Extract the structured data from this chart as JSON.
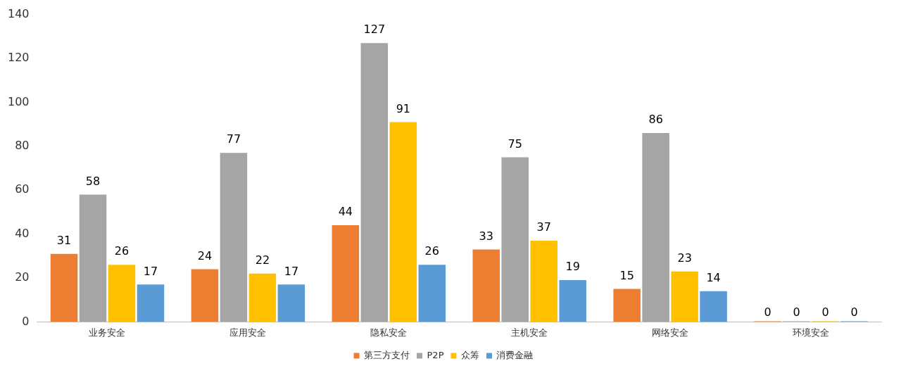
{
  "chart_data": {
    "type": "bar",
    "categories": [
      "业务安全",
      "应用安全",
      "隐私安全",
      "主机安全",
      "网络安全",
      "环境安全"
    ],
    "series": [
      {
        "name": "第三方支付",
        "color": "#ed7d31",
        "values": [
          31,
          24,
          44,
          33,
          15,
          0
        ]
      },
      {
        "name": "P2P",
        "color": "#a5a5a5",
        "values": [
          58,
          77,
          127,
          75,
          86,
          0
        ]
      },
      {
        "name": "众筹",
        "color": "#ffc000",
        "values": [
          26,
          22,
          91,
          37,
          23,
          0
        ]
      },
      {
        "name": "消费金融",
        "color": "#5b9bd5",
        "values": [
          17,
          17,
          26,
          19,
          14,
          0
        ]
      }
    ],
    "ylim": [
      0,
      140
    ],
    "yticks": [
      0,
      20,
      40,
      60,
      80,
      100,
      120,
      140
    ],
    "grid": false,
    "legend": "bottom",
    "data_labels": true
  }
}
